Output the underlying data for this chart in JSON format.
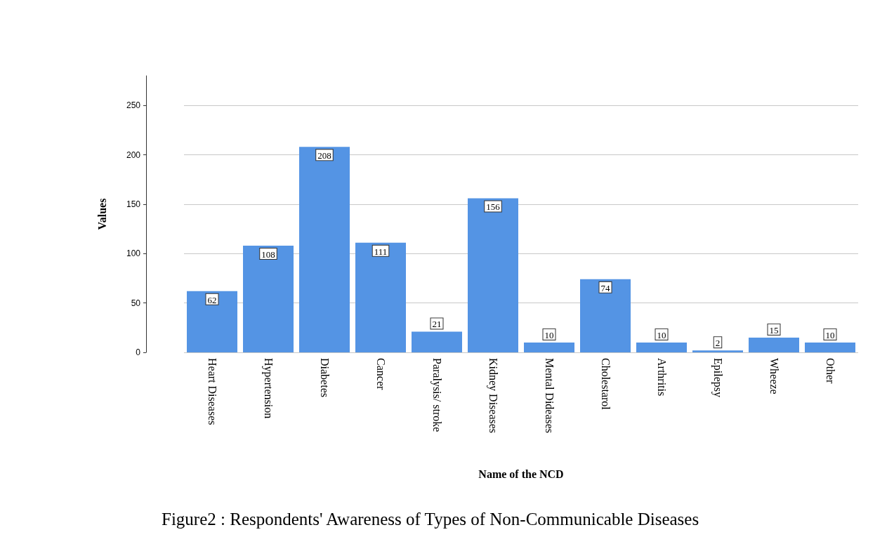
{
  "chart_data": {
    "type": "bar",
    "title": "Figure2 : Respondents' Awareness of Types of Non-Communicable Diseases",
    "xlabel": "Name of the NCD",
    "ylabel": "Values",
    "categories": [
      "Heart Diseases",
      "Hypertension",
      "Diabetes",
      "Cancer",
      "Paralysis/ stroke",
      "Kidney Diseases",
      "Mental Dideases",
      "Cholestarol",
      "Arthritis",
      "Epilepsy",
      "Wheeze",
      "Other"
    ],
    "values": [
      62,
      108,
      208,
      111,
      21,
      156,
      10,
      74,
      10,
      2,
      15,
      10
    ],
    "color": "#5494e4",
    "ylim": [
      0,
      280
    ],
    "yticks": [
      0,
      50,
      100,
      150,
      200,
      250
    ],
    "grid": "y",
    "data_labels": true
  }
}
